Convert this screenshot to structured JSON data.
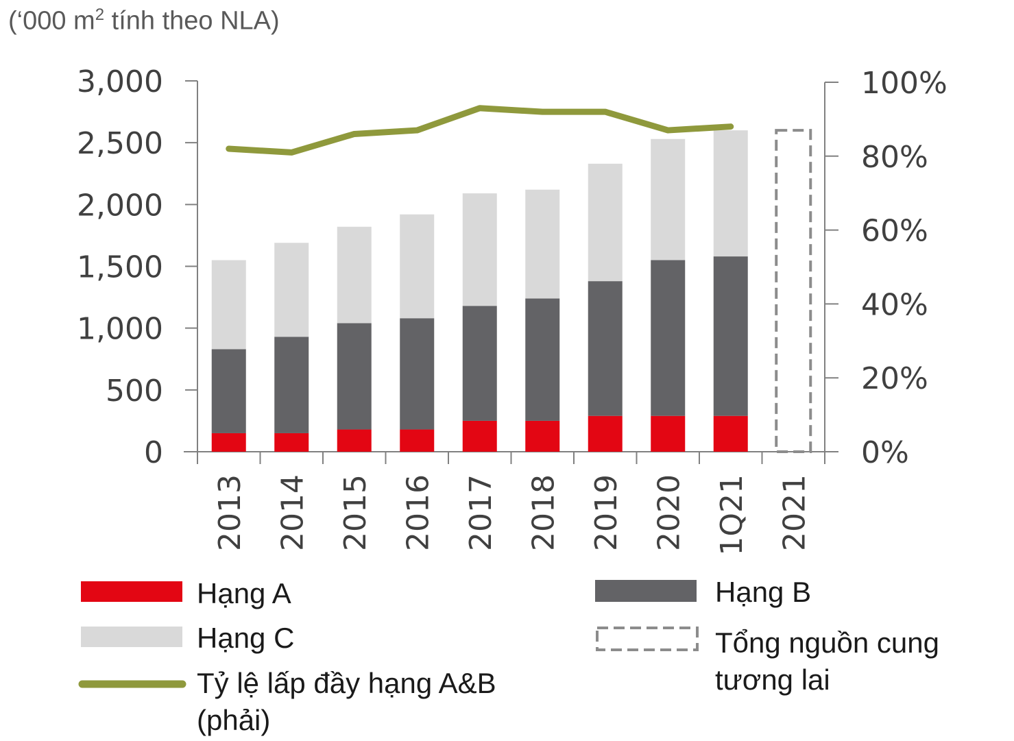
{
  "unit_label": {
    "prefix": "(‘000 m",
    "sup": "2",
    "suffix": " tính theo NLA)"
  },
  "colors": {
    "hang_a": "#e30613",
    "hang_b": "#636366",
    "hang_c": "#d9d9d9",
    "line": "#8f993c",
    "axis": "#808080",
    "future": "#8c8c8c"
  },
  "chart_data": {
    "type": "bar",
    "stacked": true,
    "categories": [
      "2013",
      "2014",
      "2015",
      "2016",
      "2017",
      "2018",
      "2019",
      "2020",
      "1Q21",
      "2021"
    ],
    "series": [
      {
        "name": "Hạng A",
        "values": [
          150,
          150,
          180,
          180,
          250,
          250,
          290,
          290,
          290,
          null
        ]
      },
      {
        "name": "Hạng B",
        "values": [
          680,
          780,
          860,
          900,
          930,
          990,
          1090,
          1260,
          1290,
          null
        ]
      },
      {
        "name": "Hạng C",
        "values": [
          720,
          760,
          780,
          840,
          910,
          880,
          950,
          980,
          1020,
          null
        ]
      },
      {
        "name": "Tổng nguồn cung tương lai",
        "type": "dashed-bar",
        "values": [
          null,
          null,
          null,
          null,
          null,
          null,
          null,
          null,
          null,
          2600
        ]
      },
      {
        "name": "Tỷ lệ lấp đầy hạng A&B (phải)",
        "type": "line",
        "axis": "right",
        "unit": "%",
        "values": [
          82,
          81,
          86,
          87,
          93,
          92,
          92,
          87,
          88,
          null
        ]
      }
    ],
    "y_left": {
      "min": 0,
      "max": 3000,
      "ticks": [
        0,
        500,
        1000,
        1500,
        2000,
        2500,
        3000
      ],
      "tick_labels": [
        "0",
        "500",
        "1,000",
        "1,500",
        "2,000",
        "2,500",
        "3,000"
      ]
    },
    "y_right": {
      "min": 0,
      "max": 100,
      "ticks": [
        0,
        20,
        40,
        60,
        80,
        100
      ],
      "tick_labels": [
        "0%",
        "20%",
        "40%",
        "60%",
        "80%",
        "100%"
      ]
    },
    "legend": {
      "position": "bottom",
      "items": [
        {
          "key": "hang_a",
          "label": "Hạng A"
        },
        {
          "key": "hang_b",
          "label": "Hạng B"
        },
        {
          "key": "hang_c",
          "label": "Hạng C"
        },
        {
          "key": "future",
          "label_lines": [
            "Tổng nguồn cung",
            "tương lai"
          ]
        },
        {
          "key": "line",
          "label_lines": [
            "Tỷ lệ lấp đầy hạng A&B",
            "(phải)"
          ]
        }
      ]
    }
  }
}
